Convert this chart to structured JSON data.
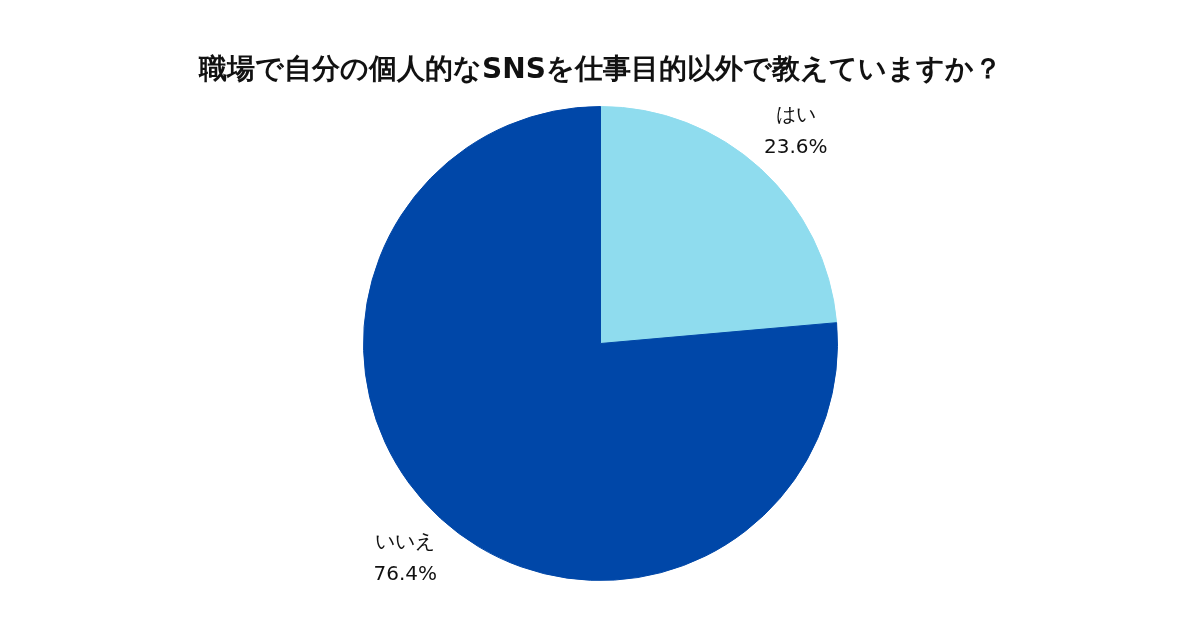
{
  "chart_data": {
    "type": "pie",
    "title": "職場で自分の個人的なSNSを仕事目的以外で教えていますか？",
    "categories": [
      "はい",
      "いいえ"
    ],
    "values": [
      23.6,
      76.4
    ],
    "colors": [
      "#8fdcee",
      "#0047a8"
    ],
    "value_labels": [
      "23.6%",
      "76.4%"
    ]
  }
}
